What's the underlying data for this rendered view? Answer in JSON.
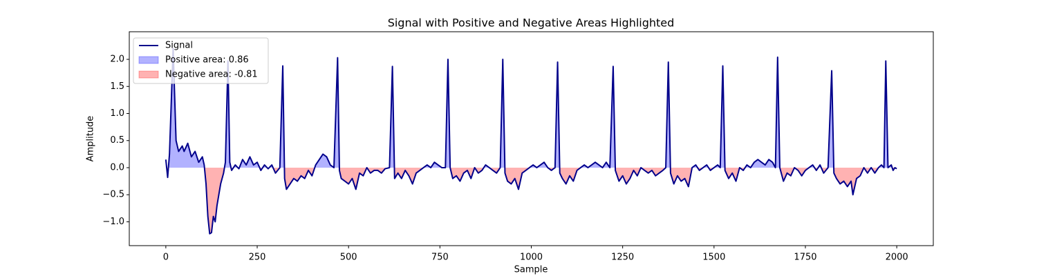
{
  "chart_data": {
    "type": "line",
    "title": "Signal with Positive and Negative Areas Highlighted",
    "xlabel": "Sample",
    "ylabel": "Amplitude",
    "x": [
      0,
      5,
      10,
      20,
      28,
      35,
      45,
      50,
      60,
      70,
      80,
      90,
      100,
      105,
      110,
      115,
      120,
      125,
      130,
      135,
      140,
      145,
      150,
      158,
      163,
      170,
      175,
      180,
      190,
      200,
      210,
      220,
      230,
      240,
      250,
      260,
      270,
      280,
      290,
      300,
      312,
      320,
      325,
      330,
      340,
      350,
      360,
      370,
      380,
      390,
      400,
      410,
      420,
      430,
      440,
      450,
      460,
      470,
      475,
      480,
      490,
      500,
      510,
      520,
      530,
      540,
      550,
      560,
      570,
      580,
      590,
      600,
      612,
      620,
      626,
      635,
      645,
      655,
      665,
      675,
      685,
      695,
      705,
      715,
      725,
      735,
      745,
      755,
      765,
      772,
      778,
      785,
      795,
      805,
      815,
      825,
      835,
      845,
      855,
      865,
      875,
      885,
      895,
      905,
      915,
      922,
      928,
      935,
      945,
      955,
      965,
      975,
      985,
      995,
      1005,
      1015,
      1025,
      1035,
      1045,
      1055,
      1065,
      1072,
      1078,
      1085,
      1095,
      1105,
      1115,
      1125,
      1135,
      1145,
      1155,
      1165,
      1175,
      1185,
      1195,
      1205,
      1215,
      1224,
      1230,
      1240,
      1250,
      1260,
      1270,
      1280,
      1290,
      1300,
      1310,
      1320,
      1330,
      1340,
      1350,
      1360,
      1368,
      1375,
      1381,
      1390,
      1400,
      1410,
      1420,
      1430,
      1440,
      1450,
      1460,
      1470,
      1480,
      1490,
      1500,
      1510,
      1517,
      1524,
      1530,
      1540,
      1550,
      1560,
      1570,
      1580,
      1590,
      1600,
      1610,
      1620,
      1630,
      1640,
      1650,
      1660,
      1668,
      1674,
      1680,
      1690,
      1700,
      1710,
      1720,
      1730,
      1740,
      1750,
      1760,
      1770,
      1780,
      1790,
      1800,
      1812,
      1822,
      1828,
      1835,
      1845,
      1855,
      1865,
      1875,
      1880,
      1890,
      1900,
      1910,
      1920,
      1930,
      1940,
      1950,
      1958,
      1965,
      1970,
      1976,
      1985,
      1990,
      1995,
      2000
    ],
    "series": [
      {
        "name": "Signal",
        "color": "#00008b",
        "values": [
          0.15,
          -0.18,
          0.25,
          2.2,
          0.5,
          0.3,
          0.4,
          0.3,
          0.45,
          0.2,
          0.3,
          0.1,
          0.2,
          0.05,
          -0.3,
          -0.9,
          -1.22,
          -1.2,
          -0.9,
          -1.0,
          -0.7,
          -0.5,
          -0.3,
          -0.1,
          0.1,
          1.97,
          0.1,
          -0.05,
          0.05,
          -0.02,
          0.15,
          0.05,
          0.2,
          0.05,
          0.1,
          -0.05,
          0.05,
          -0.02,
          0.05,
          -0.1,
          0,
          1.88,
          -0.2,
          -0.4,
          -0.3,
          -0.2,
          -0.25,
          -0.15,
          -0.2,
          -0.05,
          -0.15,
          0.05,
          0.15,
          0.25,
          0.2,
          0.05,
          0,
          2.03,
          -0.05,
          -0.2,
          -0.25,
          -0.3,
          -0.2,
          -0.4,
          -0.1,
          -0.15,
          0,
          -0.1,
          -0.05,
          -0.05,
          -0.1,
          -0.02,
          0,
          1.87,
          -0.2,
          -0.1,
          -0.2,
          -0.05,
          -0.15,
          -0.3,
          -0.1,
          -0.05,
          0,
          0.05,
          0,
          0.1,
          0.05,
          0,
          0,
          2.0,
          0,
          -0.2,
          -0.15,
          -0.25,
          -0.1,
          -0.05,
          -0.2,
          0,
          -0.1,
          -0.05,
          0.05,
          0,
          -0.05,
          -0.1,
          0,
          2.0,
          -0.1,
          -0.25,
          -0.3,
          -0.2,
          -0.4,
          -0.1,
          -0.05,
          0,
          0.05,
          0,
          0.05,
          0.1,
          0,
          -0.05,
          0,
          1.95,
          -0.1,
          -0.2,
          -0.3,
          -0.15,
          -0.25,
          -0.05,
          0,
          0.05,
          0,
          0.05,
          0.1,
          0.05,
          0,
          0.1,
          0,
          1.87,
          -0.05,
          -0.25,
          -0.15,
          -0.3,
          -0.2,
          -0.05,
          -0.15,
          0,
          -0.05,
          -0.1,
          -0.05,
          -0.15,
          -0.1,
          -0.05,
          0,
          1.95,
          -0.1,
          -0.3,
          -0.15,
          -0.25,
          -0.2,
          -0.35,
          0,
          0.05,
          -0.05,
          0,
          0.05,
          -0.05,
          0,
          0.05,
          0,
          1.88,
          -0.05,
          -0.2,
          -0.1,
          -0.25,
          0,
          -0.05,
          0.05,
          0,
          0.1,
          0.15,
          0.1,
          0.05,
          0.15,
          0.1,
          0,
          2.04,
          0,
          -0.25,
          -0.1,
          -0.15,
          0,
          -0.05,
          -0.15,
          -0.05,
          0,
          0.05,
          -0.05,
          0.05,
          -0.1,
          0,
          1.79,
          -0.1,
          -0.2,
          -0.3,
          -0.25,
          -0.35,
          -0.25,
          -0.5,
          -0.2,
          -0.15,
          0,
          -0.1,
          0,
          -0.1,
          0,
          0.05,
          0,
          1.97,
          0,
          0.05,
          -0.05,
          0,
          -0.02
        ]
      }
    ],
    "areas": [
      {
        "name": "Positive area: 0.86",
        "color": "#0000ff",
        "side": "positive"
      },
      {
        "name": "Negative area: -0.81",
        "color": "#ff0000",
        "side": "negative"
      }
    ],
    "xlim": [
      -100,
      2100
    ],
    "xticks": [
      0,
      250,
      500,
      750,
      1000,
      1250,
      1500,
      1750,
      2000
    ],
    "ylim": [
      -1.44,
      2.51
    ],
    "yticks": [
      {
        "value": -1.0,
        "label": "−1.0"
      },
      {
        "value": -0.5,
        "label": "−0.5"
      },
      {
        "value": 0,
        "label": "0.0"
      },
      {
        "value": 0.5,
        "label": "0.5"
      },
      {
        "value": 1.0,
        "label": "1.0"
      },
      {
        "value": 1.5,
        "label": "1.5"
      },
      {
        "value": 2.0,
        "label": "2.0"
      }
    ],
    "legend": "upper left"
  }
}
